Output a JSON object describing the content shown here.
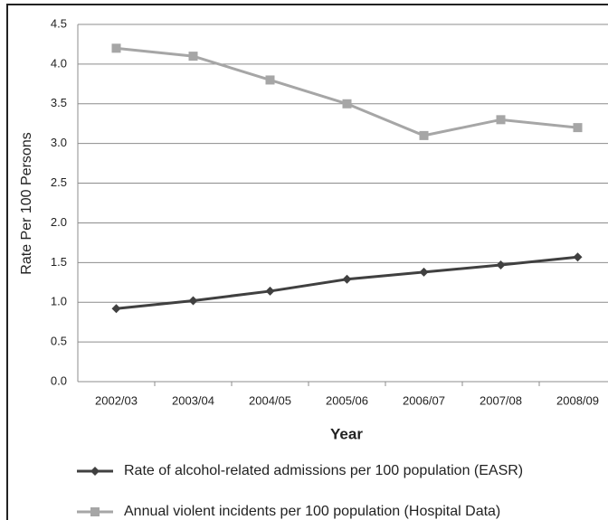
{
  "chart_data": {
    "type": "line",
    "x_label": "Year",
    "y_label": "Rate Per 100 Persons",
    "categories": [
      "2002/03",
      "2003/04",
      "2004/05",
      "2005/06",
      "2006/07",
      "2007/08",
      "2008/09"
    ],
    "series": [
      {
        "name": "Rate of alcohol-related admissions per 100 population (EASR)",
        "color": "#404040",
        "marker": "diamond",
        "values": [
          0.92,
          1.02,
          1.14,
          1.29,
          1.38,
          1.47,
          1.57
        ]
      },
      {
        "name": "Annual violent incidents per 100 population (Hospital Data)",
        "color": "#a6a6a6",
        "marker": "square",
        "values": [
          4.2,
          4.1,
          3.8,
          3.5,
          3.1,
          3.3,
          3.2
        ]
      }
    ],
    "ylim": [
      0,
      4.5
    ],
    "yticks": [
      {
        "value": 0,
        "label": "0.0"
      },
      0.5,
      {
        "value": 1,
        "label": "1.0"
      },
      1.5,
      {
        "value": 2,
        "label": "2.0"
      },
      2.5,
      {
        "value": 3,
        "label": "3.0"
      },
      3.5,
      {
        "value": 4,
        "label": "4.0"
      },
      4.5
    ],
    "grid": true
  }
}
